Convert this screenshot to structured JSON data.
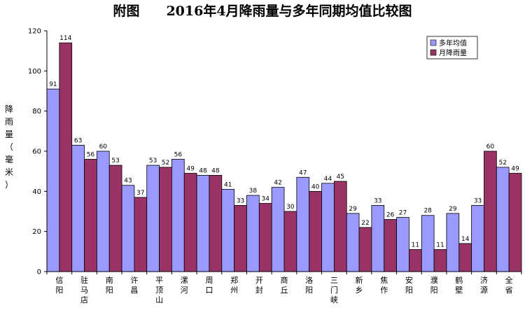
{
  "chart_data": {
    "type": "bar",
    "title": "附图　　2016年4月降雨量与多年同期均值比较图",
    "ylabel": "降雨量（毫米）",
    "ylim": [
      0,
      120
    ],
    "yticks": [
      0,
      20,
      40,
      60,
      80,
      100,
      120
    ],
    "grid": false,
    "legend_position": "top-right",
    "categories": [
      "信阳",
      "驻马店",
      "南阳",
      "许昌",
      "平顶山",
      "漯河",
      "周口",
      "郑州",
      "开封",
      "商丘",
      "洛阳",
      "三门峡",
      "新乡",
      "焦作",
      "安阳",
      "濮阳",
      "鹤壁",
      "济源",
      "全省"
    ],
    "series": [
      {
        "name": "多年均值",
        "color": "#9999FF",
        "values": [
          91,
          63,
          60,
          43,
          53,
          56,
          48,
          41,
          38,
          42,
          47,
          44,
          29,
          33,
          27,
          28,
          29,
          33,
          52
        ]
      },
      {
        "name": "月降雨量",
        "color": "#993366",
        "values": [
          114,
          56,
          53,
          37,
          52,
          49,
          48,
          33,
          34,
          30,
          40,
          45,
          22,
          26,
          11,
          11,
          14,
          60,
          49
        ]
      }
    ]
  }
}
